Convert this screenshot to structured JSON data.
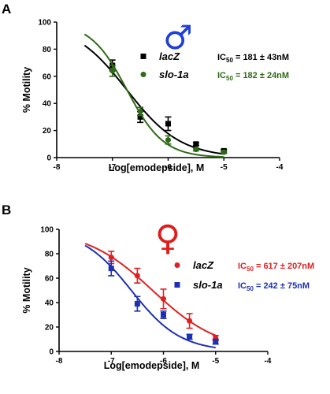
{
  "chart_data": [
    {
      "type": "scatter",
      "panel": "A",
      "symbol": "♂",
      "symbol_color": "#1f3fd6",
      "xlabel": "Log[emodepside], M",
      "ylabel": "% Motility",
      "xlim": [
        -8,
        -4
      ],
      "ylim": [
        0,
        100
      ],
      "xticks": [
        "-8",
        "-7",
        "-6",
        "-5",
        "-4"
      ],
      "yticks": [
        "0",
        "20",
        "40",
        "60",
        "80",
        "100"
      ],
      "legend_position": "right",
      "series": [
        {
          "name": "lacZ",
          "color": "#000000",
          "marker": "square",
          "x": [
            -7.0,
            -6.5,
            -6.0,
            -5.5,
            -5.0
          ],
          "y": [
            68,
            30,
            25,
            10,
            5
          ],
          "err": [
            4,
            4,
            5,
            1,
            1
          ],
          "fit": {
            "top": 100,
            "bottom": 0,
            "log_ic50": -6.742,
            "hill": -0.9
          },
          "ic50_label": "IC",
          "ic50_sub": "50",
          "ic50_value": " = 181 ± 43nM"
        },
        {
          "name": "slo-1a",
          "color": "#2e6b16",
          "marker": "circle",
          "x": [
            -7.0,
            -6.5,
            -6.0,
            -5.5,
            -5.0
          ],
          "y": [
            64,
            34,
            13,
            6,
            4
          ],
          "err": [
            4,
            3,
            3,
            1,
            1
          ],
          "fit": {
            "top": 100,
            "bottom": 0,
            "log_ic50": -6.74,
            "hill": -1.32
          },
          "ic50_label": "IC",
          "ic50_sub": "50",
          "ic50_value": " = 182 ± 24nM"
        }
      ]
    },
    {
      "type": "scatter",
      "panel": "B",
      "symbol": "♀",
      "symbol_color": "#e01b1b",
      "xlabel": "Log[emodepside], M",
      "ylabel": "% Motility",
      "xlim": [
        -8,
        -4
      ],
      "ylim": [
        0,
        100
      ],
      "xticks": [
        "-8",
        "-7",
        "-6",
        "-5",
        "-4"
      ],
      "yticks": [
        "0",
        "20",
        "40",
        "60",
        "80",
        "100"
      ],
      "legend_position": "right",
      "series": [
        {
          "name": "lacZ",
          "color": "#e02020",
          "marker": "circle",
          "x": [
            -7.0,
            -6.5,
            -6.0,
            -5.5,
            -5.0
          ],
          "y": [
            77,
            62,
            43,
            25,
            11
          ],
          "err": [
            5,
            6,
            8,
            6,
            2
          ],
          "fit": {
            "top": 100,
            "bottom": 0,
            "log_ic50": -6.209,
            "hill": -0.68
          },
          "ic50_label": "IC",
          "ic50_sub": "50",
          "ic50_value": " = 617 ± 207nM"
        },
        {
          "name": "slo-1a",
          "color": "#1c2fb5",
          "marker": "square",
          "x": [
            -7.0,
            -6.5,
            -6.0,
            -5.5,
            -5.0
          ],
          "y": [
            68,
            39,
            30,
            12,
            8
          ],
          "err": [
            6,
            6,
            3,
            2,
            2
          ],
          "fit": {
            "top": 100,
            "bottom": 0,
            "log_ic50": -6.616,
            "hill": -0.92
          },
          "ic50_label": "IC",
          "ic50_sub": "50",
          "ic50_value": " = 242 ± 75nM"
        }
      ]
    }
  ]
}
